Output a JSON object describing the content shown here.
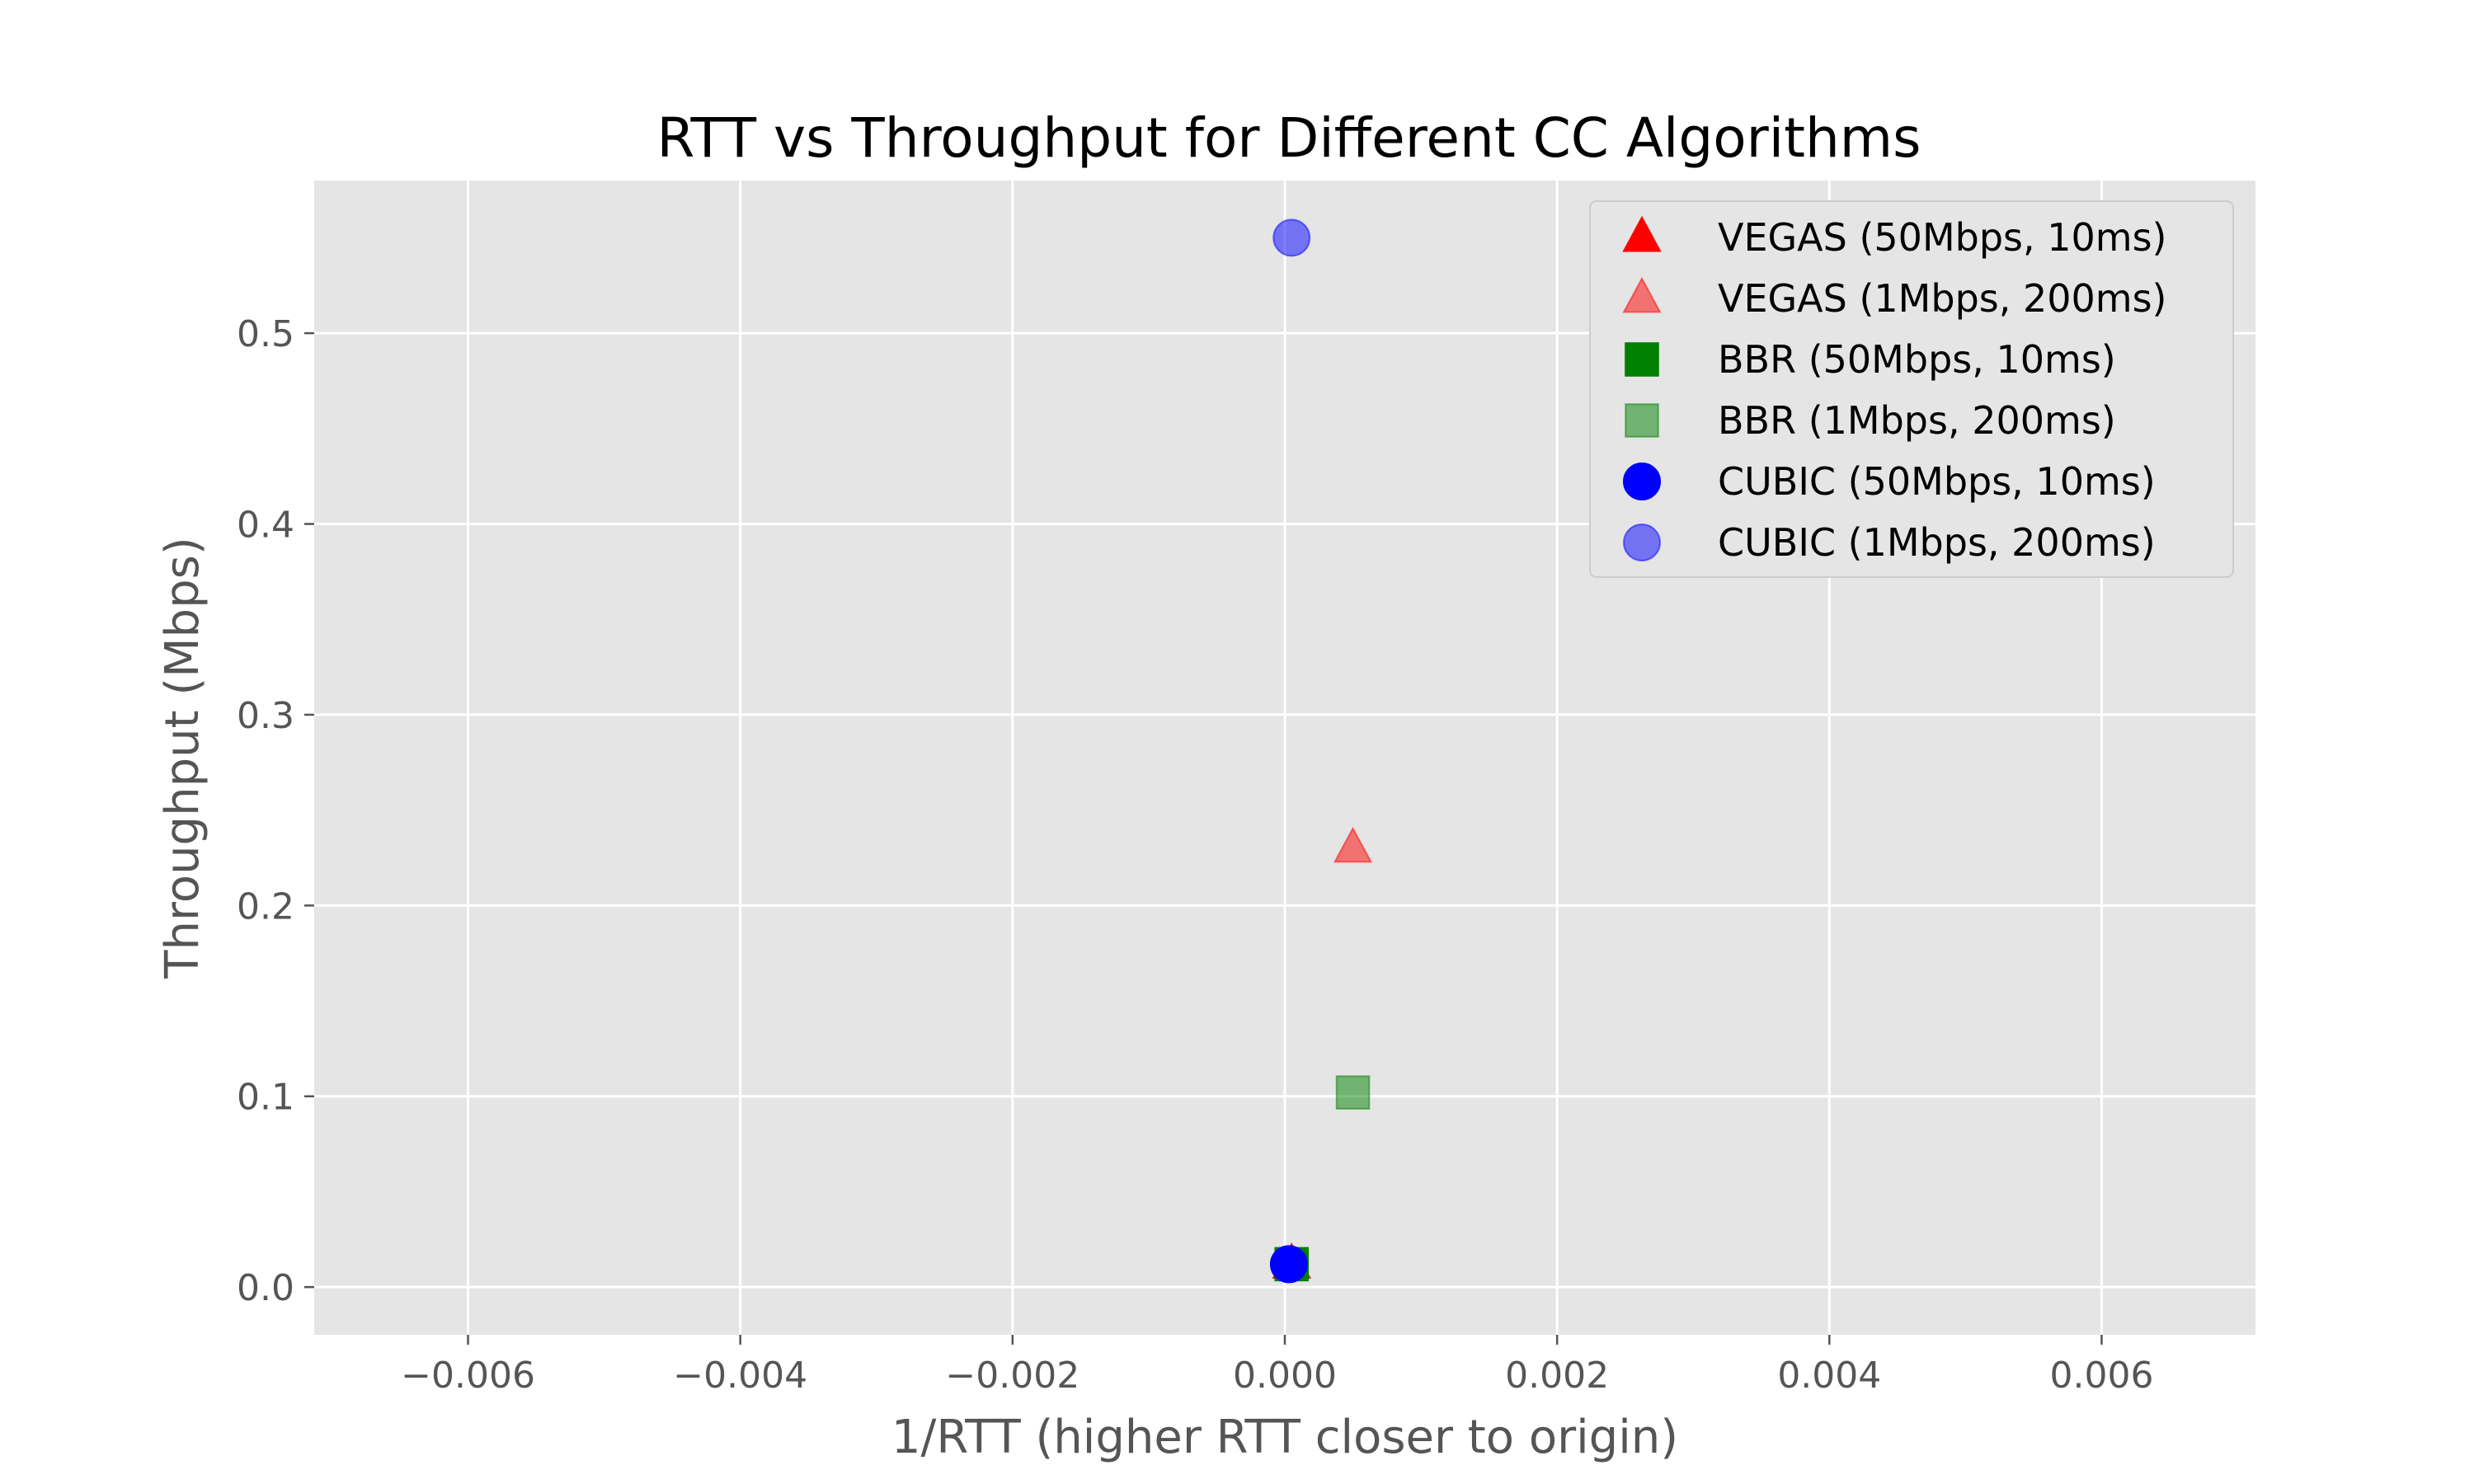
{
  "chart_data": {
    "type": "scatter",
    "title": "RTT vs Throughput for Different CC Algorithms",
    "xlabel": "1/RTT (higher RTT closer to origin)",
    "ylabel": "Throughput (Mbps)",
    "xlim": [
      -0.00713,
      0.00713
    ],
    "ylim": [
      -0.025,
      0.58
    ],
    "x_ticks": [
      -0.006,
      -0.004,
      -0.002,
      0.0,
      0.002,
      0.004,
      0.006
    ],
    "x_tick_labels": [
      "−0.006",
      "−0.004",
      "−0.002",
      "0.000",
      "0.002",
      "0.004",
      "0.006"
    ],
    "y_ticks": [
      0.0,
      0.1,
      0.2,
      0.3,
      0.4,
      0.5
    ],
    "y_tick_labels": [
      "0.0",
      "0.1",
      "0.2",
      "0.3",
      "0.4",
      "0.5"
    ],
    "grid": true,
    "legend_position": "top-right",
    "background": "#e5e5e5",
    "series": [
      {
        "name": "VEGAS (50Mbps, 10ms)",
        "marker": "triangle",
        "color": "#ff0000",
        "opacity": 1.0,
        "points": [
          {
            "x": 5e-05,
            "y": 0.012
          }
        ]
      },
      {
        "name": "VEGAS (1Mbps, 200ms)",
        "marker": "triangle",
        "color": "#ff0000",
        "opacity": 0.5,
        "points": [
          {
            "x": 0.0005,
            "y": 0.23
          }
        ]
      },
      {
        "name": "BBR (50Mbps, 10ms)",
        "marker": "square",
        "color": "#008000",
        "opacity": 1.0,
        "points": [
          {
            "x": 5e-05,
            "y": 0.012
          }
        ]
      },
      {
        "name": "BBR (1Mbps, 200ms)",
        "marker": "square",
        "color": "#008000",
        "opacity": 0.5,
        "points": [
          {
            "x": 0.0005,
            "y": 0.102
          }
        ]
      },
      {
        "name": "CUBIC (50Mbps, 10ms)",
        "marker": "circle",
        "color": "#0000ff",
        "opacity": 1.0,
        "points": [
          {
            "x": 3e-05,
            "y": 0.012
          }
        ]
      },
      {
        "name": "CUBIC (1Mbps, 200ms)",
        "marker": "circle",
        "color": "#0000ff",
        "opacity": 0.5,
        "points": [
          {
            "x": 5e-05,
            "y": 0.55
          }
        ]
      }
    ]
  }
}
